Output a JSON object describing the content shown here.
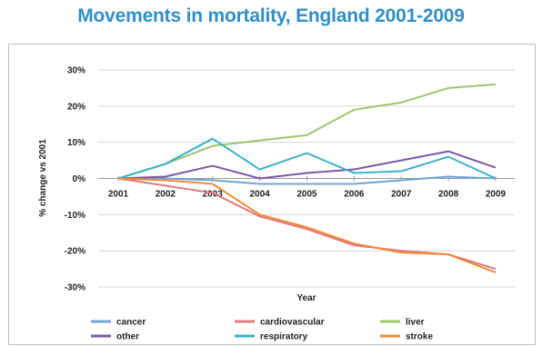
{
  "title": "Movements in mortality, England 2001-2009",
  "chart_data": {
    "type": "line",
    "x": [
      "2001",
      "2002",
      "2003",
      "2004",
      "2005",
      "2006",
      "2007",
      "2008",
      "2009"
    ],
    "xlabel": "Year",
    "ylabel": "% change vs 2001",
    "ylim": [
      -30,
      30
    ],
    "yticks": [
      30,
      20,
      10,
      0,
      -10,
      -20,
      -30
    ],
    "ytick_labels": [
      "30%",
      "20%",
      "10%",
      "0%",
      "-10%",
      "-20%",
      "-30%"
    ],
    "grid": true,
    "legend_position": "bottom",
    "series": [
      {
        "name": "cancer",
        "color": "#6fa4d8",
        "values": [
          0,
          0,
          -0.5,
          -1.5,
          -1.5,
          -1.5,
          -0.5,
          0.5,
          0
        ]
      },
      {
        "name": "cardiovascular",
        "color": "#e07a7a",
        "values": [
          0,
          -2,
          -4,
          -10.5,
          -14,
          -18.5,
          -20,
          -21,
          -25
        ]
      },
      {
        "name": "liver",
        "color": "#9bc76a",
        "values": [
          0,
          4,
          9,
          10.5,
          12,
          19,
          21,
          25,
          26
        ]
      },
      {
        "name": "other",
        "color": "#7a5aa8",
        "values": [
          0,
          0.5,
          3.5,
          0,
          1.5,
          2.5,
          5,
          7.5,
          3
        ]
      },
      {
        "name": "respiratory",
        "color": "#3cb0cc",
        "values": [
          0,
          4,
          11,
          2.5,
          7,
          1.5,
          2,
          6,
          0
        ]
      },
      {
        "name": "stroke",
        "color": "#f08a3c",
        "values": [
          0,
          -0.5,
          -1.5,
          -10,
          -13.5,
          -18,
          -20.5,
          -21,
          -26
        ]
      }
    ]
  }
}
